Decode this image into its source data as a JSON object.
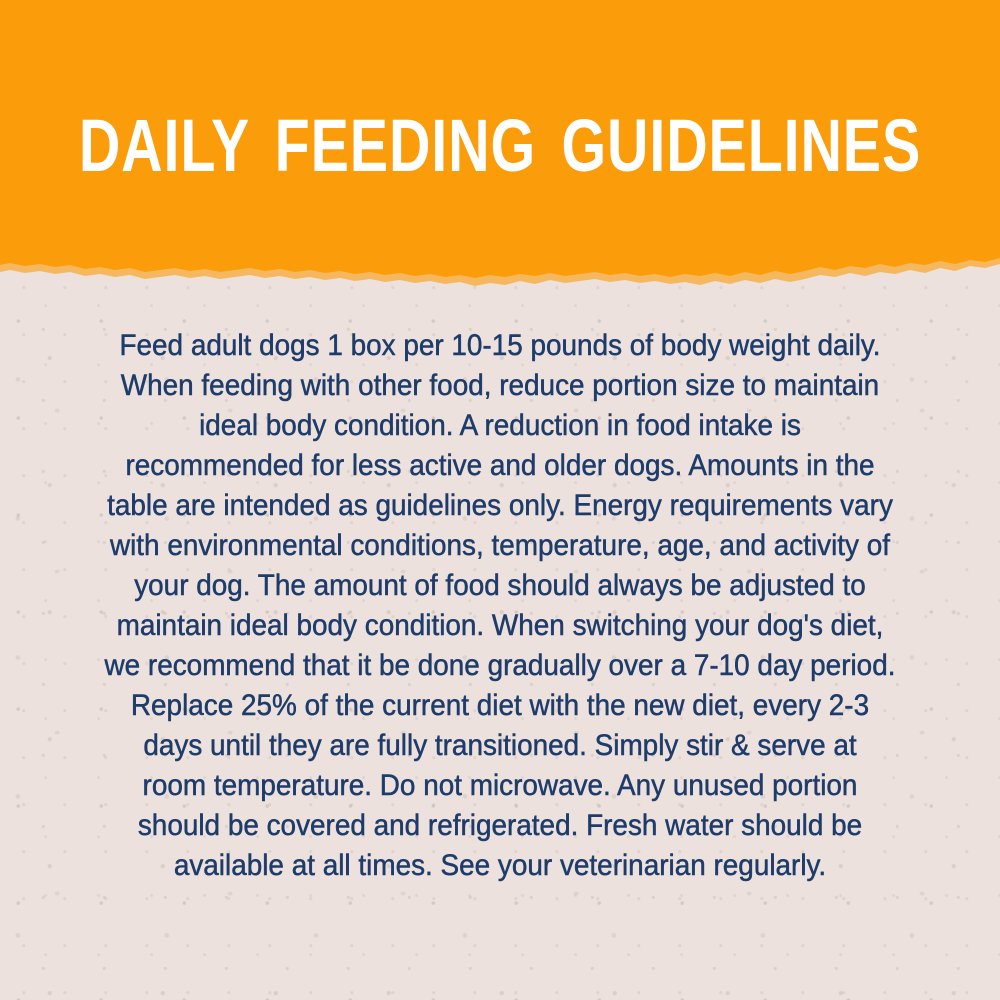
{
  "page": {
    "title": "DAILY FEEDING GUIDELINES"
  },
  "colors": {
    "header_orange": "#FB9C0A",
    "tear_fringe_orange": "#F9AE3F",
    "background_beige": "#ECE1DC",
    "body_text_navy": "#1E3C6B",
    "title_white": "#FFFFFF"
  },
  "body": {
    "lines": [
      "Feed adult dogs 1 box per 10-15 pounds of body weight daily.",
      "When feeding with other food, reduce portion size to maintain",
      "ideal body condition. A reduction in food intake is",
      "recommended for less active and older dogs. Amounts in the",
      "table are intended as guidelines only. Energy requirements vary",
      "with environmental conditions, temperature, age, and activity of",
      "your dog. The amount of food should always be adjusted to",
      "maintain ideal body condition. When switching your dog's diet,",
      "we recommend that it be done gradually over a 7-10 day period.",
      "Replace 25% of the current diet with the new diet, every 2-3",
      "days until they are fully transitioned. Simply stir & serve at",
      "room temperature. Do not microwave. Any unused portion",
      "should be covered and refrigerated. Fresh water should be",
      "available at all times. See your veterinarian regularly."
    ]
  }
}
